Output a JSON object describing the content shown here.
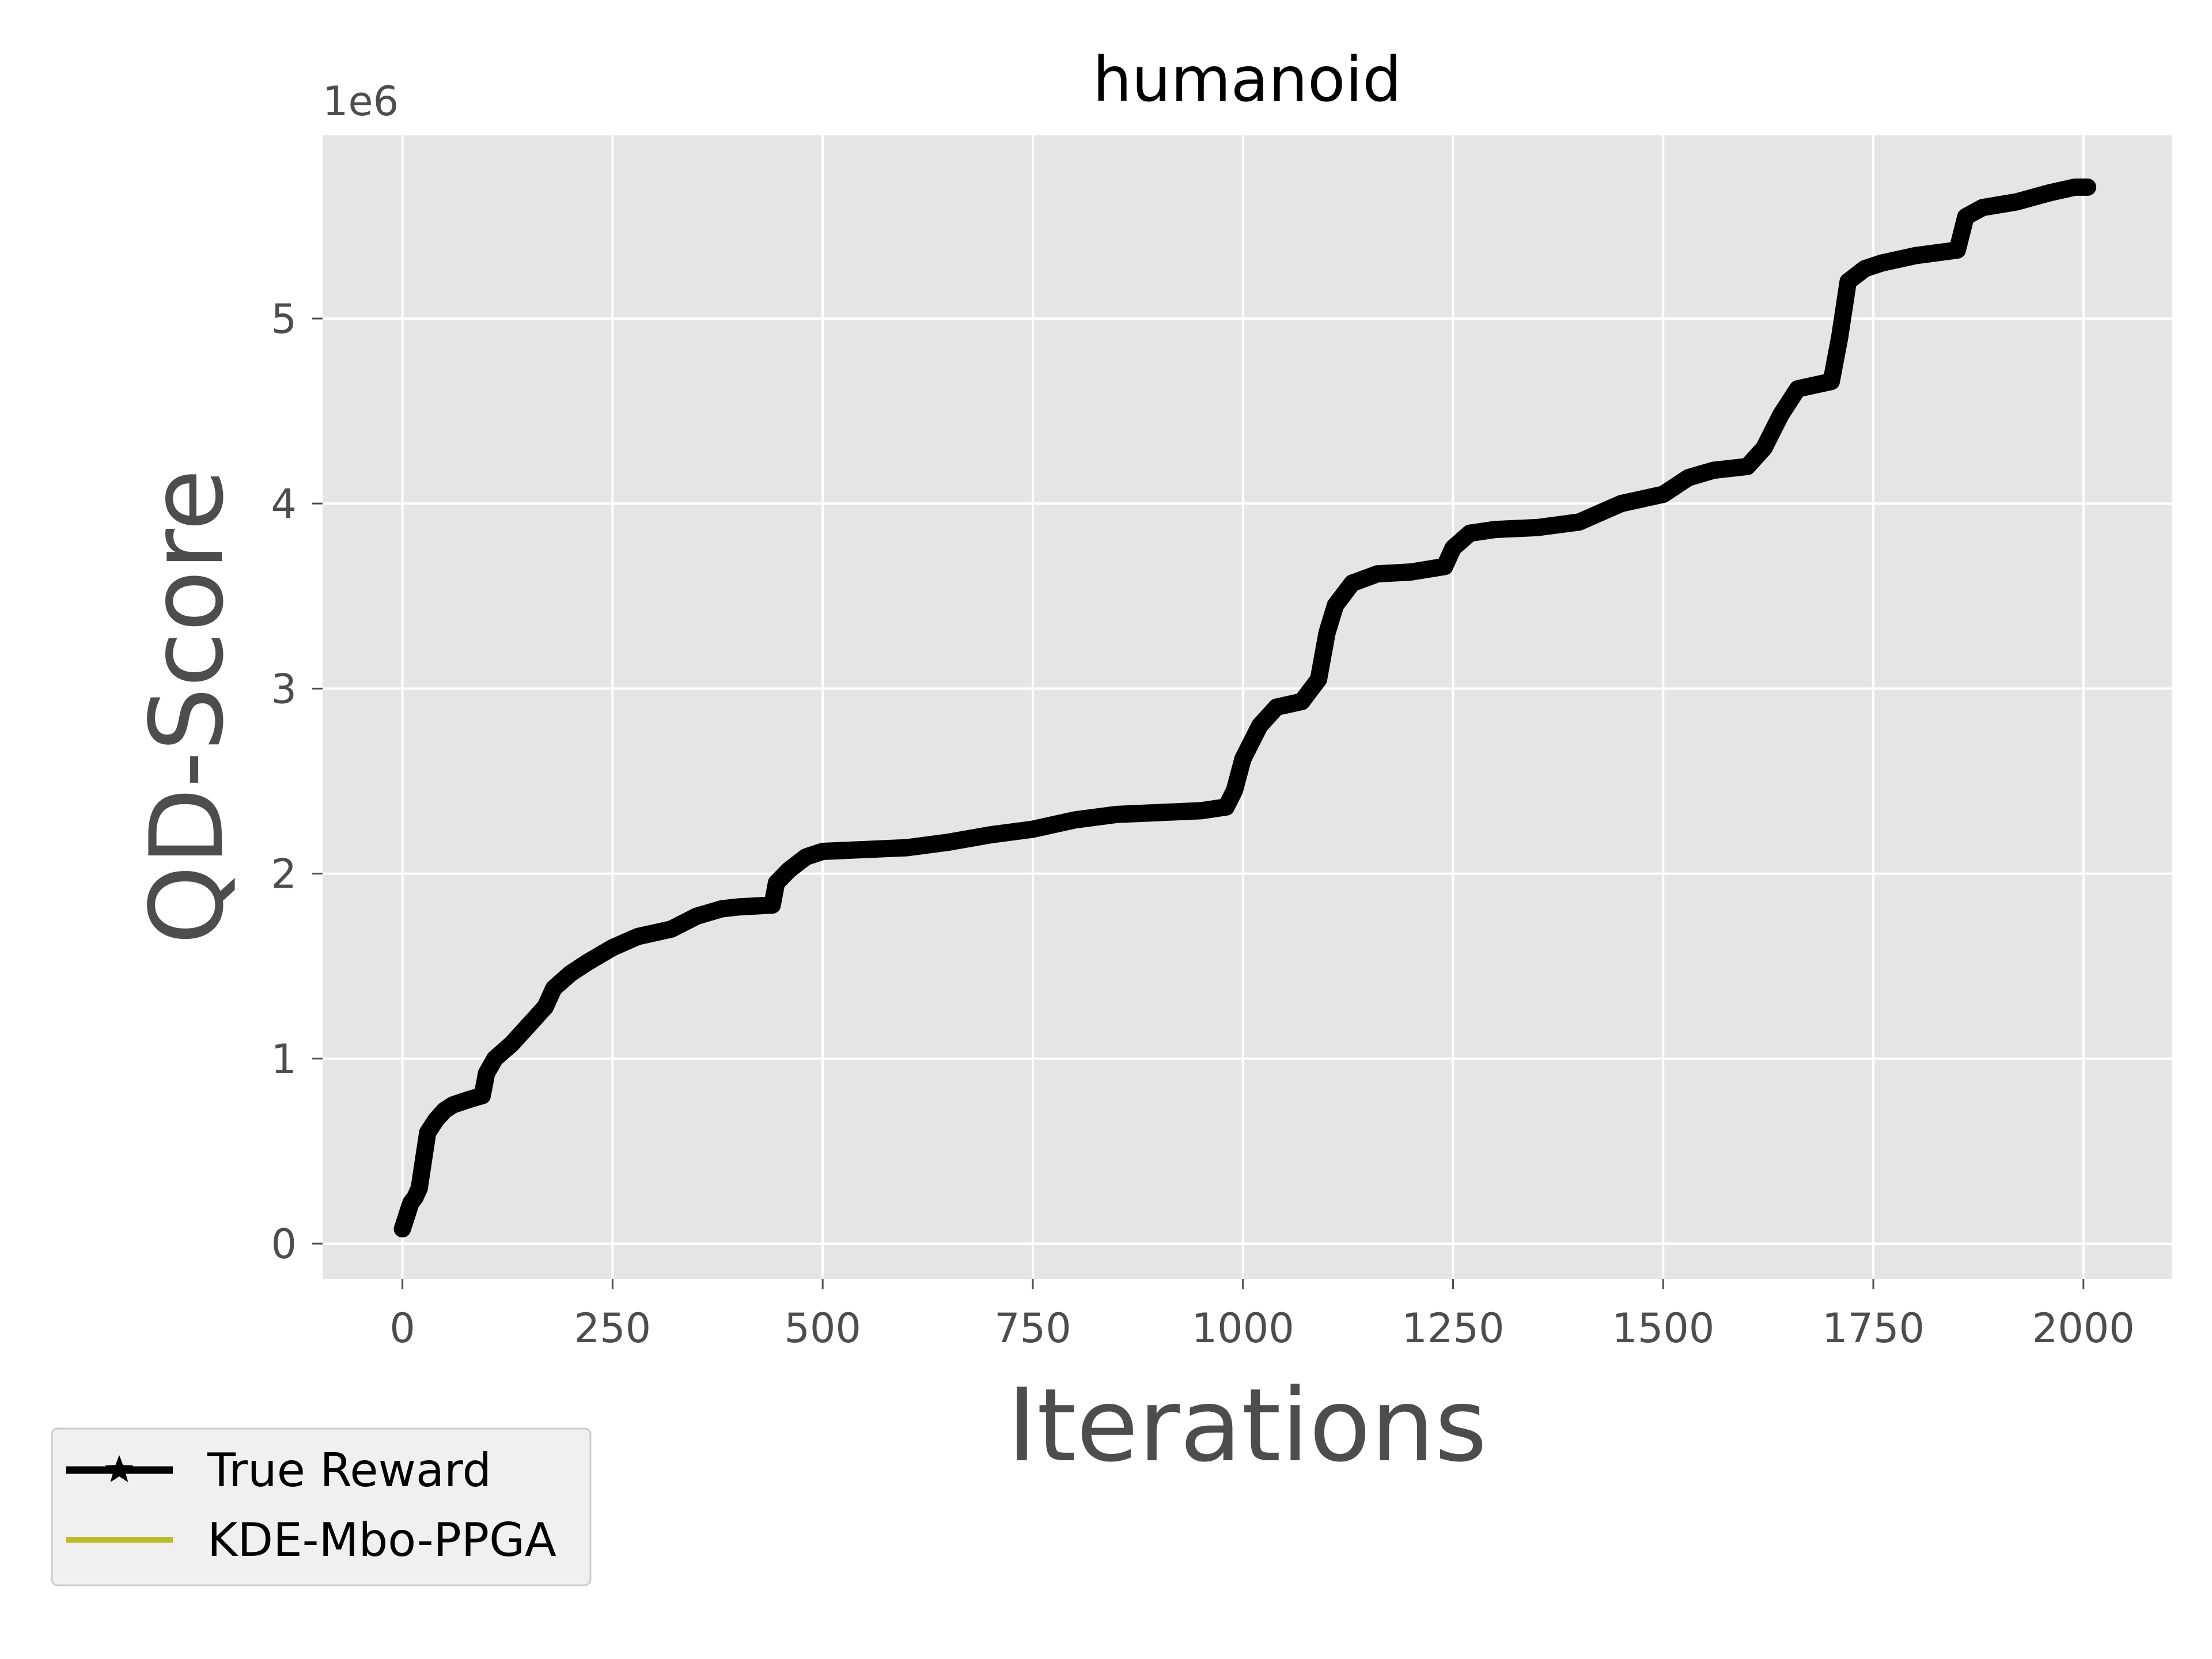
{
  "chart_data": {
    "type": "line",
    "title": "humanoid",
    "xlabel": "Iterations",
    "ylabel": "QD-Score",
    "y_offset_label": "1e6",
    "xlim": [
      -95,
      2105
    ],
    "ylim": [
      -0.19,
      5.99
    ],
    "x_ticks": [
      0,
      250,
      500,
      750,
      1000,
      1250,
      1500,
      1750,
      2000
    ],
    "x_tick_labels": [
      "0",
      "250",
      "500",
      "750",
      "1000",
      "1250",
      "1500",
      "1750",
      "2000"
    ],
    "y_ticks": [
      0,
      1,
      2,
      3,
      4,
      5
    ],
    "y_tick_labels": [
      "0",
      "1",
      "2",
      "3",
      "4",
      "5"
    ],
    "grid": true,
    "background": "#e5e5e5",
    "legend_position": "lower-left, outside plot",
    "series": [
      {
        "name": "True Reward",
        "color": "#000000",
        "marker": "star",
        "points": [
          [
            0,
            0.08
          ],
          [
            5,
            0.15
          ],
          [
            10,
            0.22
          ],
          [
            15,
            0.25
          ],
          [
            20,
            0.3
          ],
          [
            25,
            0.45
          ],
          [
            30,
            0.6
          ],
          [
            40,
            0.67
          ],
          [
            50,
            0.72
          ],
          [
            60,
            0.75
          ],
          [
            80,
            0.78
          ],
          [
            95,
            0.8
          ],
          [
            100,
            0.92
          ],
          [
            110,
            1.0
          ],
          [
            130,
            1.08
          ],
          [
            150,
            1.18
          ],
          [
            170,
            1.28
          ],
          [
            180,
            1.38
          ],
          [
            200,
            1.46
          ],
          [
            220,
            1.52
          ],
          [
            250,
            1.6
          ],
          [
            280,
            1.66
          ],
          [
            300,
            1.68
          ],
          [
            320,
            1.7
          ],
          [
            350,
            1.77
          ],
          [
            380,
            1.81
          ],
          [
            400,
            1.82
          ],
          [
            440,
            1.83
          ],
          [
            445,
            1.95
          ],
          [
            460,
            2.02
          ],
          [
            480,
            2.09
          ],
          [
            500,
            2.12
          ],
          [
            550,
            2.13
          ],
          [
            600,
            2.14
          ],
          [
            650,
            2.17
          ],
          [
            700,
            2.21
          ],
          [
            750,
            2.24
          ],
          [
            800,
            2.29
          ],
          [
            850,
            2.32
          ],
          [
            900,
            2.33
          ],
          [
            950,
            2.34
          ],
          [
            980,
            2.36
          ],
          [
            990,
            2.45
          ],
          [
            1000,
            2.62
          ],
          [
            1020,
            2.8
          ],
          [
            1040,
            2.9
          ],
          [
            1070,
            2.93
          ],
          [
            1090,
            3.05
          ],
          [
            1100,
            3.3
          ],
          [
            1110,
            3.45
          ],
          [
            1130,
            3.57
          ],
          [
            1160,
            3.62
          ],
          [
            1200,
            3.63
          ],
          [
            1240,
            3.66
          ],
          [
            1250,
            3.76
          ],
          [
            1270,
            3.84
          ],
          [
            1300,
            3.86
          ],
          [
            1350,
            3.87
          ],
          [
            1400,
            3.9
          ],
          [
            1430,
            3.96
          ],
          [
            1450,
            4.0
          ],
          [
            1500,
            4.05
          ],
          [
            1530,
            4.14
          ],
          [
            1560,
            4.18
          ],
          [
            1600,
            4.2
          ],
          [
            1620,
            4.3
          ],
          [
            1640,
            4.48
          ],
          [
            1660,
            4.62
          ],
          [
            1700,
            4.66
          ],
          [
            1710,
            4.9
          ],
          [
            1720,
            5.2
          ],
          [
            1740,
            5.27
          ],
          [
            1760,
            5.3
          ],
          [
            1800,
            5.34
          ],
          [
            1850,
            5.37
          ],
          [
            1860,
            5.55
          ],
          [
            1880,
            5.6
          ],
          [
            1920,
            5.63
          ],
          [
            1960,
            5.68
          ],
          [
            1990,
            5.71
          ],
          [
            2005,
            5.71
          ]
        ]
      },
      {
        "name": "KDE-Mbo-PPGA",
        "color": "#bcbd22",
        "points": []
      }
    ]
  }
}
